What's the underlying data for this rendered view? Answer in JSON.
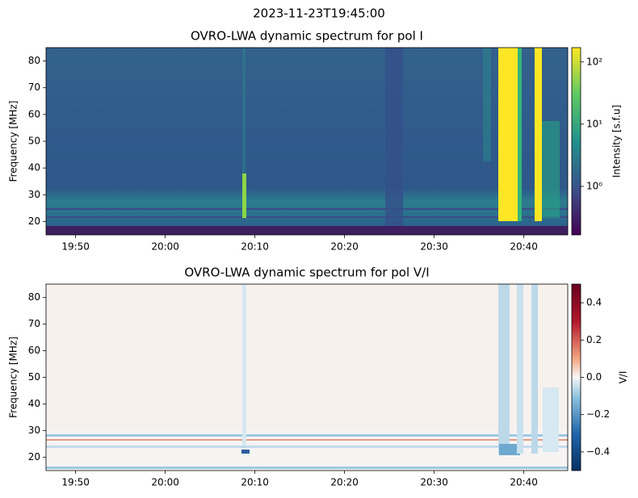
{
  "suptitle": "2023-11-23T19:45:00",
  "chart_data": [
    {
      "type": "heatmap",
      "title": "OVRO-LWA dynamic spectrum for pol I",
      "ylabel": "Frequency [MHz]",
      "xlim": [
        "19:46:42",
        "20:44:54"
      ],
      "xticks": [
        "19:50",
        "20:00",
        "20:10",
        "20:20",
        "20:30",
        "20:40"
      ],
      "ylim": [
        15,
        85
      ],
      "yticks": [
        20,
        30,
        40,
        50,
        60,
        70,
        80
      ],
      "colorbar": {
        "label": "Intensity [s.f.u]",
        "scale": "log",
        "colormap": "viridis",
        "lim": [
          0.166,
          170
        ],
        "ticks": [
          {
            "value": 1,
            "label": "10⁰"
          },
          {
            "value": 10,
            "label": "10¹"
          },
          {
            "value": 100,
            "label": "10²"
          }
        ]
      }
    },
    {
      "type": "heatmap",
      "title": "OVRO-LWA dynamic spectrum for pol V/I",
      "ylabel": "Frequency [MHz]",
      "xlim": [
        "19:46:42",
        "20:44:54"
      ],
      "xticks": [
        "19:50",
        "20:00",
        "20:10",
        "20:20",
        "20:30",
        "20:40"
      ],
      "ylim": [
        15,
        85
      ],
      "yticks": [
        20,
        30,
        40,
        50,
        60,
        70,
        80
      ],
      "colorbar": {
        "label": "V/I",
        "scale": "linear",
        "colormap": "RdBu_r",
        "lim": [
          -0.5,
          0.5
        ],
        "ticks": [
          {
            "value": -0.4,
            "label": "−0.4"
          },
          {
            "value": -0.2,
            "label": "−0.2"
          },
          {
            "value": 0,
            "label": "0.0"
          },
          {
            "value": 0.2,
            "label": "0.2"
          },
          {
            "value": 0.4,
            "label": "0.4"
          }
        ]
      }
    }
  ]
}
